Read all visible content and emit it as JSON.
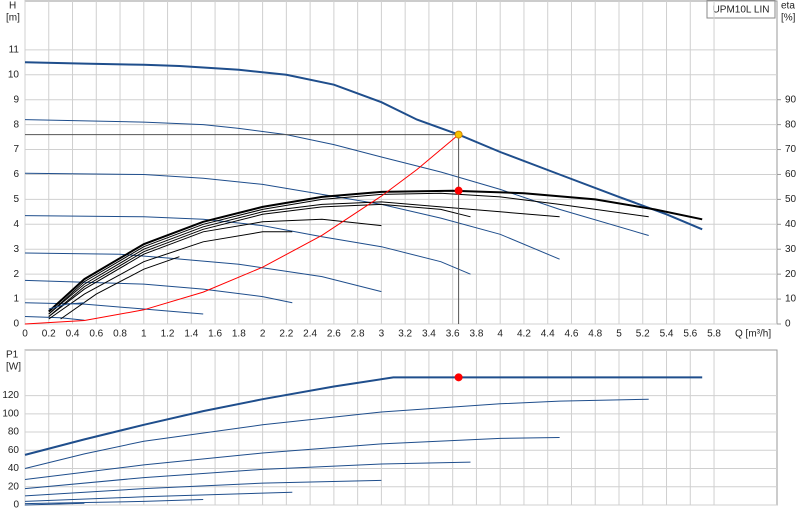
{
  "chart_data": [
    {
      "type": "line",
      "annotation": "UPM10L LIN",
      "ylabel": "H",
      "yunit": "[m]",
      "y2label": "eta",
      "y2unit": "[%]",
      "xlabel": "Q [m³/h]",
      "xlim": [
        0,
        6.33
      ],
      "ylim": [
        0,
        12.96
      ],
      "y2lim": [
        0,
        129.6
      ],
      "xticks": [
        0,
        0.2,
        0.4,
        0.6,
        0.8,
        1.0,
        1.2,
        1.4,
        1.6,
        1.8,
        2.0,
        2.2,
        2.4,
        2.6,
        2.8,
        3.0,
        3.2,
        3.4,
        3.6,
        3.8,
        4.0,
        4.2,
        4.4,
        4.6,
        4.8,
        5.0,
        5.2,
        5.4,
        5.6,
        5.8
      ],
      "yticks": [
        0,
        1,
        2,
        3,
        4,
        5,
        6,
        7,
        8,
        9,
        10,
        11
      ],
      "y2ticks": [
        0,
        10,
        20,
        30,
        40,
        50,
        60,
        70,
        80,
        90
      ],
      "grid": true,
      "series": [
        {
          "color": "#1f4e8c",
          "line_width": 2,
          "x": [
            0,
            0.5,
            1,
            1.3,
            1.8,
            2.2,
            2.6,
            3,
            3.3,
            3.65,
            4,
            4.5,
            5,
            5.4,
            5.7
          ],
          "values": [
            10.5,
            10.45,
            10.4,
            10.35,
            10.2,
            10,
            9.6,
            8.9,
            8.2,
            7.6,
            6.9,
            6,
            5.1,
            4.4,
            3.8
          ]
        },
        {
          "color": "#1f4e8c",
          "x": [
            0,
            1,
            1.5,
            1.8,
            2.2,
            2.6,
            3,
            3.5,
            4,
            4.5,
            5.25
          ],
          "values": [
            8.2,
            8.1,
            8,
            7.85,
            7.6,
            7.2,
            6.7,
            6.1,
            5.4,
            4.6,
            3.55
          ]
        },
        {
          "color": "#1f4e8c",
          "x": [
            0,
            1,
            1.5,
            2,
            2.5,
            3,
            3.5,
            4,
            4.5
          ],
          "values": [
            6.05,
            6,
            5.85,
            5.6,
            5.2,
            4.8,
            4.25,
            3.6,
            2.6
          ]
        },
        {
          "color": "#1f4e8c",
          "x": [
            0,
            1,
            1.5,
            2,
            2.5,
            3,
            3.5,
            3.75
          ],
          "values": [
            4.35,
            4.3,
            4.2,
            3.95,
            3.5,
            3.1,
            2.5,
            2.0
          ]
        },
        {
          "color": "#1f4e8c",
          "x": [
            0,
            0.8,
            1.2,
            1.8,
            2.5,
            3
          ],
          "values": [
            2.85,
            2.8,
            2.65,
            2.4,
            1.9,
            1.3
          ]
        },
        {
          "color": "#1f4e8c",
          "x": [
            0,
            1,
            1.5,
            2,
            2.25
          ],
          "values": [
            1.75,
            1.6,
            1.4,
            1.1,
            0.85
          ]
        },
        {
          "color": "#1f4e8c",
          "x": [
            0,
            0.5,
            1,
            1.5
          ],
          "values": [
            0.85,
            0.8,
            0.6,
            0.4
          ]
        },
        {
          "color": "#1f4e8c",
          "x": [
            0,
            0.3,
            0.5
          ],
          "values": [
            0.3,
            0.25,
            0.15
          ]
        },
        {
          "color": "#000000",
          "axis": "y2",
          "line_width": 2,
          "x": [
            0.2,
            0.5,
            1,
            1.5,
            2,
            2.5,
            3,
            3.6,
            4.2,
            4.8,
            5.3,
            5.7
          ],
          "values": [
            5,
            18,
            32,
            41,
            47,
            51,
            53,
            53.5,
            52.5,
            50,
            46,
            42
          ]
        },
        {
          "color": "#000000",
          "axis": "y2",
          "x": [
            0.2,
            0.5,
            1,
            1.5,
            2,
            2.5,
            3,
            3.5,
            4,
            4.5,
            5.25
          ],
          "values": [
            4,
            17,
            31,
            40,
            46,
            50,
            52,
            52.5,
            51,
            48,
            43
          ]
        },
        {
          "color": "#000000",
          "axis": "y2",
          "x": [
            0.2,
            0.5,
            1,
            1.5,
            2,
            2.5,
            3,
            3.5,
            4,
            4.5
          ],
          "values": [
            4,
            16,
            30,
            39,
            45,
            48,
            49,
            47,
            45,
            43
          ]
        },
        {
          "color": "#000000",
          "axis": "y2",
          "x": [
            0.2,
            0.5,
            1,
            1.5,
            2,
            2.5,
            3,
            3.5,
            3.75
          ],
          "values": [
            3,
            15,
            29,
            38,
            44,
            47,
            48,
            46,
            43
          ]
        },
        {
          "color": "#000000",
          "axis": "y2",
          "x": [
            0.2,
            0.5,
            1,
            1.5,
            2,
            2.5,
            3
          ],
          "values": [
            3,
            14,
            28,
            37,
            41,
            42,
            39.5
          ]
        },
        {
          "color": "#000000",
          "axis": "y2",
          "x": [
            0.2,
            0.5,
            1,
            1.5,
            2,
            2.25
          ],
          "values": [
            2,
            12,
            25,
            33,
            37,
            37
          ]
        },
        {
          "color": "#000000",
          "axis": "y2",
          "x": [
            0.3,
            0.6,
            1,
            1.3
          ],
          "values": [
            2,
            12,
            22,
            27
          ]
        },
        {
          "color": "#1f4e8c",
          "x": [
            0.2,
            0.35,
            0.5
          ],
          "values": [
            0.6,
            0.8,
            0.85
          ]
        },
        {
          "color": "#ff0000",
          "x": [
            0,
            0.5,
            1,
            1.5,
            2,
            2.5,
            3,
            3.3,
            3.65
          ],
          "values": [
            0,
            0.14,
            0.57,
            1.28,
            2.28,
            3.56,
            5.13,
            6.2,
            7.6
          ]
        },
        {
          "color": "#555555",
          "x": [
            0,
            3.65,
            3.65
          ],
          "values": [
            7.6,
            7.6,
            0
          ]
        },
        {
          "color": "#f5c400",
          "marker": true,
          "x": [
            3.65
          ],
          "values": [
            7.6
          ]
        },
        {
          "color": "#ff0000",
          "marker": true,
          "axis": "y2",
          "x": [
            3.65
          ],
          "values": [
            53.5
          ]
        }
      ]
    },
    {
      "type": "line",
      "ylabel": "P1",
      "yunit": "[W]",
      "xlim": [
        0,
        6.33
      ],
      "ylim": [
        0,
        170
      ],
      "xticks": [
        0,
        0.2,
        0.4,
        0.6,
        0.8,
        1.0,
        1.2,
        1.4,
        1.6,
        1.8,
        2.0,
        2.2,
        2.4,
        2.6,
        2.8,
        3.0,
        3.2,
        3.4,
        3.6,
        3.8,
        4.0,
        4.2,
        4.4,
        4.6,
        4.8,
        5.0,
        5.2,
        5.4,
        5.6,
        5.8
      ],
      "yticks": [
        0,
        20,
        40,
        60,
        80,
        100,
        120
      ],
      "grid": true,
      "series": [
        {
          "color": "#1f4e8c",
          "line_width": 2,
          "x": [
            0,
            0.5,
            1,
            1.5,
            2,
            2.6,
            3.1,
            5.7
          ],
          "values": [
            55,
            72,
            88,
            103,
            116,
            130,
            140,
            140
          ]
        },
        {
          "color": "#1f4e8c",
          "x": [
            0,
            0.5,
            1,
            2,
            3,
            4,
            4.5,
            5.25
          ],
          "values": [
            40,
            56,
            70,
            88,
            102,
            111,
            114,
            116
          ]
        },
        {
          "color": "#1f4e8c",
          "x": [
            0,
            1,
            2,
            3,
            4,
            4.5
          ],
          "values": [
            28,
            44,
            57,
            67,
            73,
            74
          ]
        },
        {
          "color": "#1f4e8c",
          "x": [
            0,
            1,
            2,
            3,
            3.75
          ],
          "values": [
            18,
            30,
            39,
            45,
            47
          ]
        },
        {
          "color": "#1f4e8c",
          "x": [
            0,
            1,
            2,
            3
          ],
          "values": [
            10,
            18,
            24,
            27
          ]
        },
        {
          "color": "#1f4e8c",
          "x": [
            0,
            1,
            2,
            2.25
          ],
          "values": [
            4,
            9,
            13,
            14
          ]
        },
        {
          "color": "#1f4e8c",
          "x": [
            0,
            1,
            1.5
          ],
          "values": [
            1.5,
            4,
            6
          ]
        },
        {
          "color": "#1f4e8c",
          "x": [
            0,
            0.5
          ],
          "values": [
            0,
            2
          ]
        },
        {
          "color": "#ff0000",
          "marker": true,
          "x": [
            3.65
          ],
          "values": [
            140
          ]
        }
      ]
    }
  ]
}
